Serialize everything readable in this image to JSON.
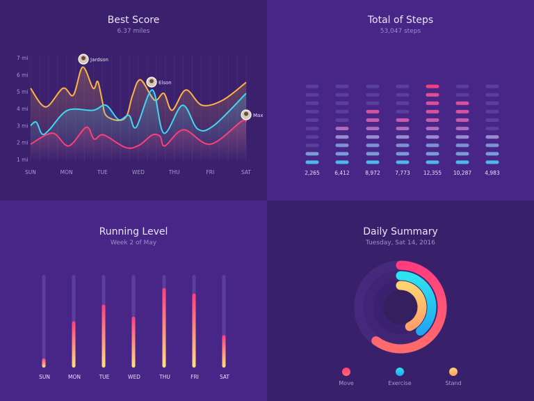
{
  "chart_data": [
    {
      "type": "line",
      "title": "Best Score",
      "subtitle": "6.37 miles",
      "categories": [
        "SUN",
        "MON",
        "TUE",
        "WED",
        "THU",
        "FRI",
        "SAT"
      ],
      "y_ticks": [
        "1 mi",
        "2 mi",
        "3 mi",
        "4 mi",
        "5 mi",
        "6 mi",
        "7 mi"
      ],
      "ylim": [
        1,
        7
      ],
      "grid": "vertical",
      "series": [
        {
          "name": "Jardson",
          "color": "#ffb347",
          "points": [
            [
              0,
              5.2
            ],
            [
              0.42,
              4.1
            ],
            [
              0.9,
              5.2
            ],
            [
              1.19,
              4.8
            ],
            [
              1.45,
              6.45
            ],
            [
              1.74,
              5.2
            ],
            [
              1.87,
              5.6
            ],
            [
              2.0,
              4.4
            ],
            [
              2.1,
              3.6
            ],
            [
              2.45,
              3.3
            ],
            [
              2.68,
              3.6
            ],
            [
              2.84,
              4.8
            ],
            [
              3.06,
              5.7
            ],
            [
              3.45,
              4.5
            ],
            [
              3.71,
              4.9
            ],
            [
              3.94,
              3.9
            ],
            [
              4.32,
              5.1
            ],
            [
              4.77,
              4.2
            ],
            [
              5.35,
              4.5
            ],
            [
              6,
              5.55
            ]
          ]
        },
        {
          "name": "Elson",
          "color": "#3fd8f5",
          "points": [
            [
              0,
              3.0
            ],
            [
              0.16,
              3.2
            ],
            [
              0.32,
              2.5
            ],
            [
              0.52,
              2.75
            ],
            [
              1.03,
              3.9
            ],
            [
              1.74,
              3.9
            ],
            [
              2.1,
              4.2
            ],
            [
              2.45,
              3.35
            ],
            [
              2.74,
              3.6
            ],
            [
              2.94,
              2.9
            ],
            [
              3.39,
              5.1
            ],
            [
              3.71,
              2.55
            ],
            [
              4.23,
              4.2
            ],
            [
              4.65,
              2.8
            ],
            [
              5.1,
              3.0
            ],
            [
              6,
              4.9
            ]
          ]
        },
        {
          "name": "Max",
          "color": "#ff3f78",
          "points": [
            [
              0,
              1.9
            ],
            [
              0.61,
              2.55
            ],
            [
              1.06,
              1.8
            ],
            [
              1.55,
              2.9
            ],
            [
              1.77,
              2.2
            ],
            [
              2.03,
              2.45
            ],
            [
              2.65,
              1.7
            ],
            [
              3.03,
              1.85
            ],
            [
              3.39,
              2.45
            ],
            [
              3.61,
              2.35
            ],
            [
              3.74,
              1.8
            ],
            [
              4.26,
              2.75
            ],
            [
              5.0,
              1.9
            ],
            [
              5.87,
              3.25
            ],
            [
              6,
              3.2
            ]
          ]
        }
      ],
      "annotations": [
        {
          "label": "Jardson",
          "x": 1.45
        },
        {
          "label": "Elson",
          "x": 3.39
        },
        {
          "label": "Max",
          "x": 6
        }
      ]
    },
    {
      "type": "bar",
      "title": "Total of Steps",
      "subtitle": "53,047 steps",
      "values": [
        2265,
        6412,
        8972,
        7773,
        12355,
        10287,
        4983
      ],
      "labels": [
        "2,265",
        "6,412",
        "8,972",
        "7,773",
        "12,355",
        "10,287",
        "4,983"
      ],
      "segments_lit": [
        2,
        5,
        7,
        6,
        10,
        8,
        4
      ],
      "segments_total": 10
    },
    {
      "type": "bar",
      "title": "Running Level",
      "subtitle": "Week 2 of May",
      "categories": [
        "SUN",
        "MON",
        "TUE",
        "WED",
        "THU",
        "FRI",
        "SAT"
      ],
      "values": [
        0.1,
        0.5,
        0.68,
        0.55,
        0.86,
        0.8,
        0.35
      ],
      "ylim": [
        0,
        1
      ]
    },
    {
      "type": "pie",
      "title": "Daily Summary",
      "subtitle": "Tuesday, Sat 14, 2016",
      "rings": [
        {
          "name": "Move",
          "value": 0.6,
          "colors": [
            "#ff3d7f",
            "#ff6b6b"
          ]
        },
        {
          "name": "Exercise",
          "value": 0.39,
          "colors": [
            "#2fe3ee",
            "#1fa8f0"
          ]
        },
        {
          "name": "Stand",
          "value": 0.43,
          "colors": [
            "#ffd36e",
            "#ffa06a"
          ]
        }
      ]
    }
  ]
}
